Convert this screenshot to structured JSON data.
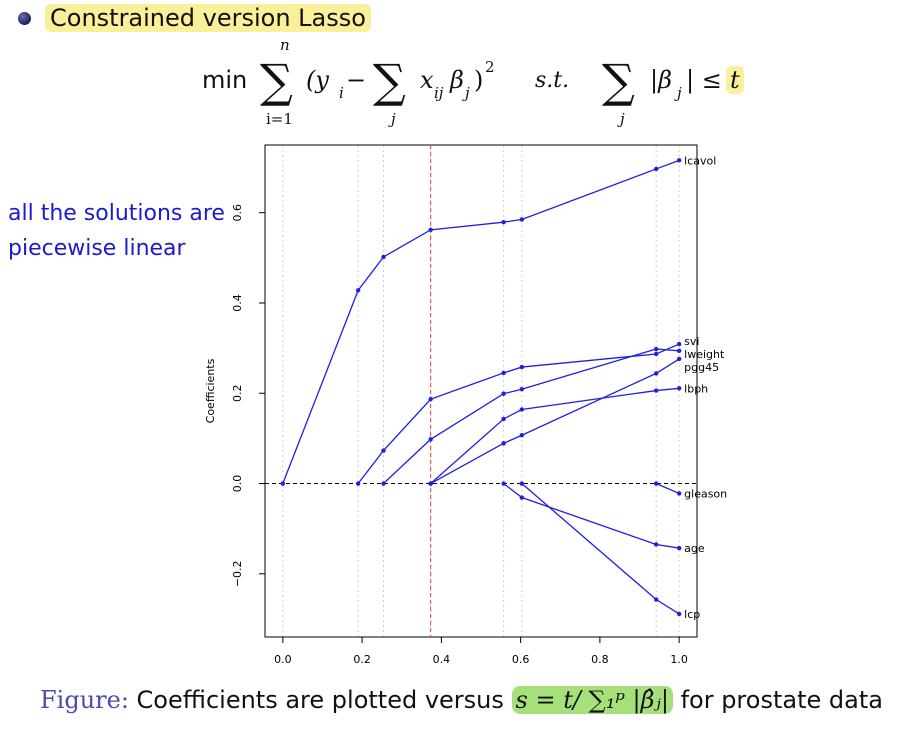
{
  "bullet": {
    "text": "Constrained version Lasso"
  },
  "formula": {
    "min": "min",
    "sum_upper": "n",
    "sum_lower": "i=1",
    "term": "(y",
    "sub_i": "i",
    "minus": " −",
    "inner_sub": "j",
    "x": "x",
    "sub_ij": "ij",
    "beta": "β",
    "sub_j": "j",
    "close_sq": ")",
    "pow": "2",
    "st": "s.t.",
    "sum3_lower": "j",
    "abs_beta": "|β",
    "abs_close": "| ≤",
    "t": "t"
  },
  "side_note": {
    "line1": "all the solutions are",
    "line2": "piecewise linear"
  },
  "caption": {
    "figure_word": "Figure:",
    "text_before": " Coefficients are plotted versus ",
    "highlight": "s = t/ ∑₁ᵖ |β̂ⱼ|",
    "text_after": " for prostate data"
  },
  "colors": {
    "line": "#1f1fe0",
    "ref_line": "#e0443a",
    "highlight_yellow": "#fbf09a",
    "highlight_green": "#a6e07a"
  },
  "chart_data": {
    "type": "line",
    "xlabel": "",
    "ylabel": "Coefficients",
    "xlim": [
      -0.045,
      1.045
    ],
    "ylim": [
      -0.34,
      0.75
    ],
    "xticks": [
      "0.0",
      "0.2",
      "0.4",
      "0.6",
      "0.8",
      "1.0"
    ],
    "yticks": [
      "-0.2",
      "0.0",
      "0.2",
      "0.4",
      "0.6"
    ],
    "vertical_gridlines_x": [
      0,
      0.19,
      0.254,
      0.373,
      0.557,
      0.603,
      0.942,
      1.0
    ],
    "reference_vline_x": 0.373,
    "reference_hline_y": 0.0,
    "series": [
      {
        "name": "lcavol",
        "x": [
          0,
          0.19,
          0.254,
          0.373,
          0.557,
          0.603,
          0.942,
          1.0
        ],
        "y": [
          0,
          0.428,
          0.502,
          0.562,
          0.579,
          0.585,
          0.697,
          0.716
        ]
      },
      {
        "name": "svi",
        "x": [
          0.19,
          0.254,
          0.373,
          0.557,
          0.603,
          0.942,
          1.0
        ],
        "y": [
          0,
          0.073,
          0.187,
          0.245,
          0.258,
          0.287,
          0.309
        ]
      },
      {
        "name": "lweight",
        "x": [
          0.254,
          0.373,
          0.557,
          0.603,
          0.942,
          1.0
        ],
        "y": [
          0,
          0.098,
          0.199,
          0.209,
          0.298,
          0.294
        ]
      },
      {
        "name": "pgg45",
        "x": [
          0.373,
          0.557,
          0.603,
          0.942,
          1.0
        ],
        "y": [
          0,
          0.089,
          0.107,
          0.244,
          0.276
        ]
      },
      {
        "name": "lbph",
        "x": [
          0.373,
          0.557,
          0.603,
          0.942,
          1.0
        ],
        "y": [
          0,
          0.143,
          0.164,
          0.206,
          0.211
        ]
      },
      {
        "name": "gleason",
        "x": [
          0.942,
          1.0
        ],
        "y": [
          0,
          -0.022
        ]
      },
      {
        "name": "age",
        "x": [
          0.557,
          0.603,
          0.942,
          1.0
        ],
        "y": [
          0,
          -0.031,
          -0.135,
          -0.143
        ]
      },
      {
        "name": "lcp",
        "x": [
          0.603,
          0.942,
          1.0
        ],
        "y": [
          0,
          -0.257,
          -0.289
        ]
      }
    ],
    "series_labels": [
      "lcavol",
      "svi",
      "lweight",
      "pgg45",
      "lbph",
      "gleason",
      "age",
      "lcp"
    ]
  }
}
